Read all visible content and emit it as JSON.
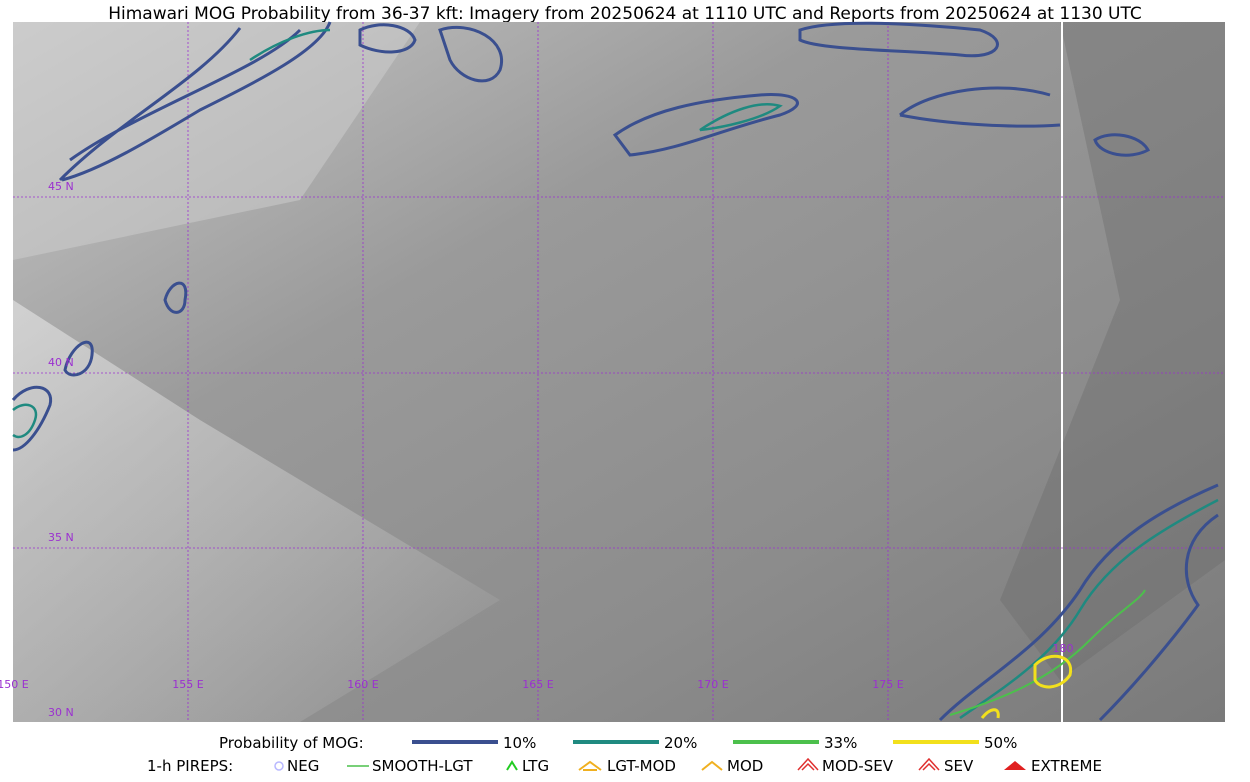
{
  "title": "Himawari MOG Probability from 36-37 kft: Imagery from 20250624 at 1110 UTC and Reports from 20250624 at 1130 UTC",
  "map": {
    "lat_labels": [
      "45 N",
      "40 N",
      "35 N",
      "30 N"
    ],
    "lon_labels": [
      "150 E",
      "155 E",
      "160 E",
      "165 E",
      "170 E",
      "175 E",
      "180"
    ]
  },
  "legend": {
    "title": "Probability of MOG:",
    "levels": [
      "10%",
      "20%",
      "33%",
      "50%"
    ]
  },
  "pireps": {
    "title": "1-h PIREPS:",
    "items": [
      "NEG",
      "SMOOTH-LGT",
      "LTG",
      "LGT-MOD",
      "MOD",
      "MOD-SEV",
      "SEV",
      "EXTREME"
    ]
  }
}
